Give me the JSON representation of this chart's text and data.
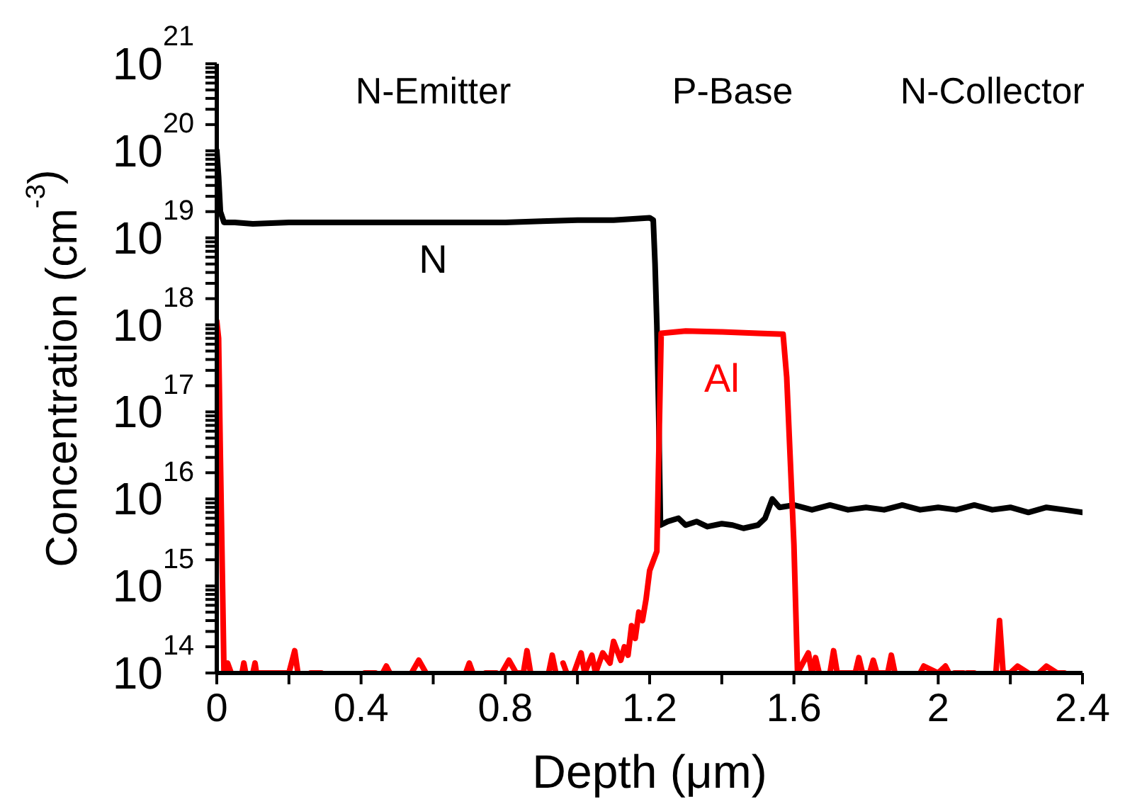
{
  "chart_data": {
    "type": "line",
    "xlabel": "Depth (μm)",
    "ylabel": "Concentration (cm$^{-3}$)",
    "log": "y",
    "annotations": [
      "N-Emitter",
      "P-Base",
      "N-Collector"
    ],
    "xlim": [
      0,
      2.4
    ],
    "xticks": [
      0,
      {
        "value": 0.2,
        "label": null
      },
      0.4,
      {
        "value": 0.6,
        "label": null
      },
      0.8,
      {
        "value": 1.0,
        "label": null
      },
      1.2,
      {
        "value": 1.4,
        "label": null
      },
      1.6,
      {
        "value": 1.8,
        "label": null
      },
      2,
      {
        "value": 2.2,
        "label": null
      },
      2.4
    ],
    "ylim": [
      100000000000000.0,
      1e+21
    ],
    "yticks": [
      {
        "value": 100000000000000.0,
        "label": "10$^{14}$"
      },
      {
        "value": 200000000000000.0,
        "label": null
      },
      {
        "value": 300000000000000.0,
        "label": null
      },
      {
        "value": 400000000000000.0,
        "label": null
      },
      {
        "value": 500000000000000.0,
        "label": null
      },
      {
        "value": 600000000000000.0,
        "label": null
      },
      {
        "value": 700000000000000.0,
        "label": null
      },
      {
        "value": 800000000000000.0,
        "label": null
      },
      {
        "value": 900000000000000.0,
        "label": null
      },
      {
        "value": 1000000000000000.0,
        "label": "10$^{15}$"
      },
      {
        "value": 2000000000000000.0,
        "label": null
      },
      {
        "value": 3000000000000000.0,
        "label": null
      },
      {
        "value": 4000000000000000.0,
        "label": null
      },
      {
        "value": 5000000000000000.0,
        "label": null
      },
      {
        "value": 6000000000000000.0,
        "label": null
      },
      {
        "value": 7000000000000000.0,
        "label": null
      },
      {
        "value": 8000000000000000.0,
        "label": null
      },
      {
        "value": 9000000000000000.0,
        "label": null
      },
      {
        "value": 1e+16,
        "label": "10$^{16}$"
      },
      {
        "value": 2e+16,
        "label": null
      },
      {
        "value": 3e+16,
        "label": null
      },
      {
        "value": 4e+16,
        "label": null
      },
      {
        "value": 5e+16,
        "label": null
      },
      {
        "value": 6e+16,
        "label": null
      },
      {
        "value": 7e+16,
        "label": null
      },
      {
        "value": 8e+16,
        "label": null
      },
      {
        "value": 9e+16,
        "label": null
      },
      {
        "value": 1e+17,
        "label": "10$^{17}$"
      },
      {
        "value": 2e+17,
        "label": null
      },
      {
        "value": 3e+17,
        "label": null
      },
      {
        "value": 4e+17,
        "label": null
      },
      {
        "value": 5e+17,
        "label": null
      },
      {
        "value": 6e+17,
        "label": null
      },
      {
        "value": 7e+17,
        "label": null
      },
      {
        "value": 8e+17,
        "label": null
      },
      {
        "value": 9e+17,
        "label": null
      },
      {
        "value": 1e+18,
        "label": "10$^{18}$"
      },
      {
        "value": 2e+18,
        "label": null
      },
      {
        "value": 3e+18,
        "label": null
      },
      {
        "value": 4e+18,
        "label": null
      },
      {
        "value": 5e+18,
        "label": null
      },
      {
        "value": 6e+18,
        "label": null
      },
      {
        "value": 7e+18,
        "label": null
      },
      {
        "value": 8e+18,
        "label": null
      },
      {
        "value": 9e+18,
        "label": null
      },
      {
        "value": 1e+19,
        "label": "10$^{19}$"
      },
      {
        "value": 2e+19,
        "label": null
      },
      {
        "value": 3e+19,
        "label": null
      },
      {
        "value": 4e+19,
        "label": null
      },
      {
        "value": 5e+19,
        "label": null
      },
      {
        "value": 6e+19,
        "label": null
      },
      {
        "value": 7e+19,
        "label": null
      },
      {
        "value": 8e+19,
        "label": null
      },
      {
        "value": 9e+19,
        "label": null
      },
      {
        "value": 1e+20,
        "label": "10$^{20}$"
      },
      {
        "value": 2e+20,
        "label": null
      },
      {
        "value": 3e+20,
        "label": null
      },
      {
        "value": 4e+20,
        "label": null
      },
      {
        "value": 5e+20,
        "label": null
      },
      {
        "value": 6e+20,
        "label": null
      },
      {
        "value": 7e+20,
        "label": null
      },
      {
        "value": 8e+20,
        "label": null
      },
      {
        "value": 9e+20,
        "label": null
      },
      {
        "value": 1e+21,
        "label": "10$^{21}$"
      }
    ],
    "series": [
      {
        "name": "N",
        "color": "#000000",
        "x": [
          0,
          0.005,
          0.01,
          0.02,
          0.05,
          0.1,
          0.2,
          0.3,
          0.4,
          0.5,
          0.6,
          0.7,
          0.8,
          0.9,
          1.0,
          1.1,
          1.2,
          1.21,
          1.215,
          1.22,
          1.225,
          1.23,
          1.25,
          1.28,
          1.3,
          1.33,
          1.36,
          1.4,
          1.43,
          1.46,
          1.5,
          1.52,
          1.54,
          1.56,
          1.6,
          1.65,
          1.7,
          1.75,
          1.8,
          1.85,
          1.9,
          1.95,
          2.0,
          2.05,
          2.1,
          2.15,
          2.2,
          2.25,
          2.3,
          2.35,
          2.4
        ],
        "values": [
          1e+20,
          5e+19,
          2e+19,
          1.5e+19,
          1.5e+19,
          1.45e+19,
          1.5e+19,
          1.5e+19,
          1.5e+19,
          1.5e+19,
          1.5e+19,
          1.5e+19,
          1.5e+19,
          1.55e+19,
          1.6e+19,
          1.6e+19,
          1.7e+19,
          1.6e+19,
          5e+18,
          1e+18,
          1e+17,
          5000000000000000.0,
          5500000000000000.0,
          6000000000000000.0,
          5000000000000000.0,
          5500000000000000.0,
          4800000000000000.0,
          5200000000000000.0,
          5000000000000000.0,
          4600000000000000.0,
          5000000000000000.0,
          6000000000000000.0,
          1e+16,
          8000000000000000.0,
          8500000000000000.0,
          7500000000000000.0,
          8500000000000000.0,
          7500000000000000.0,
          8000000000000000.0,
          7500000000000000.0,
          8500000000000000.0,
          7500000000000000.0,
          8000000000000000.0,
          7500000000000000.0,
          8500000000000000.0,
          7500000000000000.0,
          8000000000000000.0,
          7000000000000000.0,
          8000000000000000.0,
          7500000000000000.0,
          7000000000000000.0
        ]
      },
      {
        "name": "Al",
        "color": "#ff0000",
        "x": [
          0,
          0.005,
          0.01,
          0.02,
          0.03,
          0.04,
          0.05,
          0.07,
          0.075,
          0.08,
          0.09,
          0.1,
          0.106,
          0.11,
          0.2,
          0.216,
          0.225,
          0.24,
          0.26,
          0.29,
          0.3,
          0.41,
          0.44,
          0.45,
          0.46,
          0.47,
          0.48,
          0.5,
          0.54,
          0.56,
          0.58,
          0.59,
          0.69,
          0.7,
          0.71,
          0.72,
          0.745,
          0.775,
          0.78,
          0.79,
          0.81,
          0.83,
          0.85,
          0.86,
          0.87,
          0.89,
          0.92,
          0.93,
          0.94,
          0.95,
          0.96,
          0.97,
          0.98,
          0.99,
          1.01,
          1.02,
          1.04,
          1.05,
          1.07,
          1.09,
          1.1,
          1.12,
          1.13,
          1.14,
          1.15,
          1.16,
          1.17,
          1.18,
          1.19,
          1.2,
          1.22,
          1.232,
          1.3,
          1.4,
          1.5,
          1.57,
          1.58,
          1.6,
          1.61,
          1.62,
          1.64,
          1.65,
          1.66,
          1.67,
          1.68,
          1.7,
          1.71,
          1.72,
          1.77,
          1.78,
          1.79,
          1.81,
          1.82,
          1.83,
          1.86,
          1.87,
          1.88,
          1.9,
          1.95,
          1.96,
          2.0,
          2.02,
          2.03,
          2.035,
          2.045,
          2.07,
          2.075,
          2.08,
          2.1,
          2.105,
          2.16,
          2.17,
          2.18,
          2.2,
          2.22,
          2.25,
          2.27,
          2.28,
          2.3,
          2.33,
          2.35
        ],
        "values": [
          1.1e+18,
          7e+17,
          3e+16,
          100000000000000.0,
          130000000000000.0,
          100000000000000.0,
          null,
          100000000000000.0,
          130000000000000.0,
          100000000000000.0,
          null,
          100000000000000.0,
          130000000000000.0,
          100000000000000.0,
          100000000000000.0,
          180000000000000.0,
          100000000000000.0,
          null,
          100000000000000.0,
          100000000000000.0,
          null,
          100000000000000.0,
          100000000000000.0,
          null,
          100000000000000.0,
          120000000000000.0,
          100000000000000.0,
          null,
          100000000000000.0,
          140000000000000.0,
          100000000000000.0,
          null,
          100000000000000.0,
          130000000000000.0,
          100000000000000.0,
          null,
          100000000000000.0,
          100000000000000.0,
          null,
          100000000000000.0,
          140000000000000.0,
          100000000000000.0,
          100000000000000.0,
          180000000000000.0,
          100000000000000.0,
          null,
          100000000000000.0,
          160000000000000.0,
          100000000000000.0,
          null,
          130000000000000.0,
          100000000000000.0,
          null,
          100000000000000.0,
          170000000000000.0,
          100000000000000.0,
          160000000000000.0,
          100000000000000.0,
          170000000000000.0,
          130000000000000.0,
          230000000000000.0,
          140000000000000.0,
          200000000000000.0,
          160000000000000.0,
          350000000000000.0,
          250000000000000.0,
          500000000000000.0,
          400000000000000.0,
          700000000000000.0,
          1500000000000000.0,
          2500000000000000.0,
          8e+17,
          8.5e+17,
          8.3e+17,
          8e+17,
          7.8e+17,
          2.5e+17,
          3000000000000000.0,
          100000000000000.0,
          120000000000000.0,
          170000000000000.0,
          100000000000000.0,
          150000000000000.0,
          100000000000000.0,
          null,
          100000000000000.0,
          180000000000000.0,
          100000000000000.0,
          100000000000000.0,
          150000000000000.0,
          100000000000000.0,
          100000000000000.0,
          140000000000000.0,
          100000000000000.0,
          100000000000000.0,
          160000000000000.0,
          100000000000000.0,
          null,
          100000000000000.0,
          120000000000000.0,
          100000000000000.0,
          120000000000000.0,
          100000000000000.0,
          null,
          100000000000000.0,
          100000000000000.0,
          null,
          100000000000000.0,
          100000000000000.0,
          null,
          100000000000000.0,
          400000000000000.0,
          100000000000000.0,
          100000000000000.0,
          120000000000000.0,
          100000000000000.0,
          null,
          100000000000000.0,
          120000000000000.0,
          100000000000000.0,
          100000000000000.0
        ]
      }
    ]
  }
}
